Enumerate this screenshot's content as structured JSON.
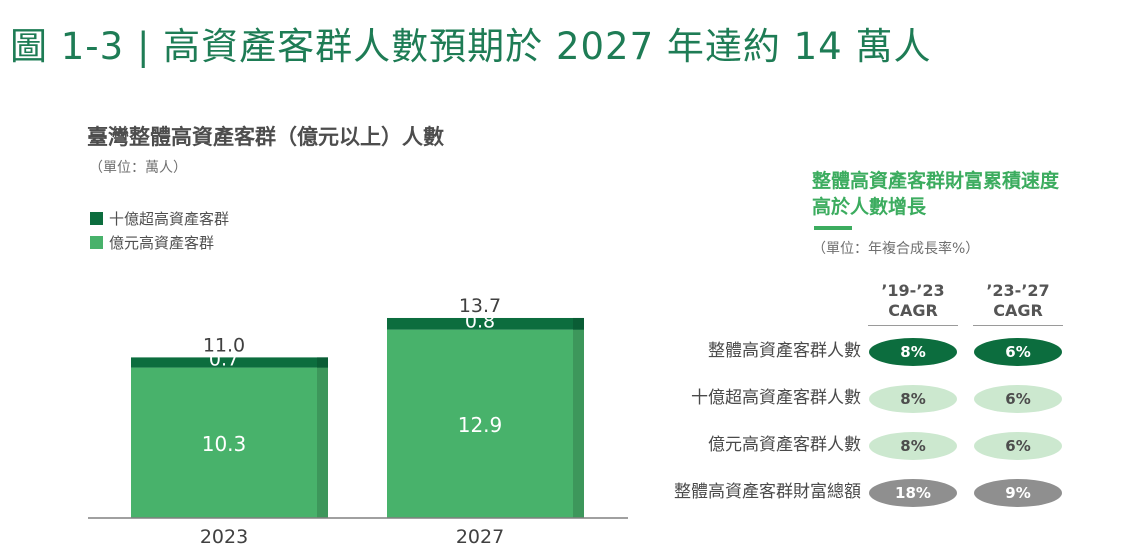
{
  "page_title": "圖 1-3 | 高資產客群人數預期於 2027 年達約 14 萬人",
  "colors": {
    "dark_green": "#0c6d3e",
    "green": "#48b26b",
    "light_green": "#cce8cf",
    "gray": "#8f8f8f",
    "title_green": "#1e7c55",
    "accent_green": "#3cac5f"
  },
  "chart_data": {
    "type": "bar",
    "stacked": true,
    "title": "臺灣整體高資產客群（億元以上）人數",
    "unit": "（單位：萬人）",
    "categories": [
      "2023",
      "2027"
    ],
    "series": [
      {
        "name": "億元高資產客群",
        "values": [
          10.3,
          12.9
        ],
        "color": "#48b26b"
      },
      {
        "name": "十億超高資產客群",
        "values": [
          0.7,
          0.8
        ],
        "color": "#0c6d3e"
      }
    ],
    "totals": [
      11.0,
      13.7
    ],
    "legend": "top-left",
    "grid": false
  },
  "labels": {
    "segments": [
      [
        "10.3",
        "0.7"
      ],
      [
        "12.9",
        "0.8"
      ]
    ],
    "totals": [
      "11.0",
      "13.7"
    ]
  },
  "cagr_panel": {
    "title_lines": [
      "整體高資產客群財富累積速度",
      "高於人數增長"
    ],
    "unit": "（單位：年複合成長率%）",
    "columns": [
      {
        "period": "’19-’23",
        "label": "CAGR"
      },
      {
        "period": "’23-’27",
        "label": "CAGR"
      }
    ],
    "rows": [
      {
        "label": "整體高資產客群人數",
        "values": [
          "8%",
          "6%"
        ],
        "style": "dark"
      },
      {
        "label": "十億超高資產客群人數",
        "values": [
          "8%",
          "6%"
        ],
        "style": "light"
      },
      {
        "label": "億元高資產客群人數",
        "values": [
          "8%",
          "6%"
        ],
        "style": "light"
      },
      {
        "label": "整體高資產客群財富總額",
        "values": [
          "18%",
          "9%"
        ],
        "style": "gray"
      }
    ]
  }
}
